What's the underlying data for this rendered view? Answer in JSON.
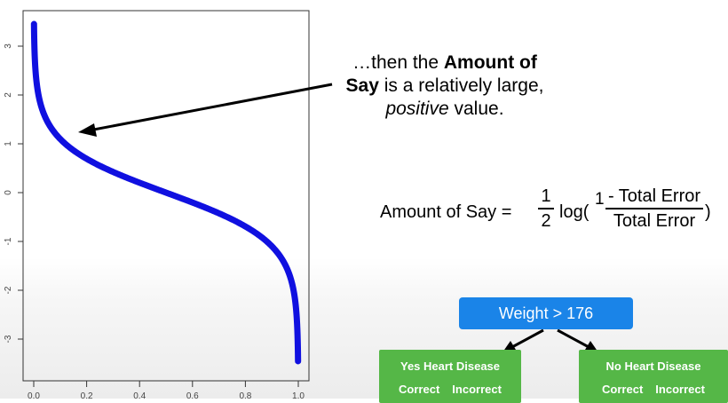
{
  "chart_data": {
    "type": "line",
    "function": "0.5*ln((1-x)/x)",
    "x_ticks": [
      "0.0",
      "0.2",
      "0.4",
      "0.6",
      "0.8",
      "1.0"
    ],
    "y_ticks": [
      "-3",
      "-2",
      "-1",
      "0",
      "1",
      "2",
      "3"
    ],
    "xlim": [
      0.0,
      1.0
    ],
    "ylim": [
      -3.6,
      3.6
    ],
    "x_range": [
      0.001,
      0.999
    ],
    "line_color": "#1010e0",
    "grid": false
  },
  "annotation": {
    "line1_prefix": "…then the ",
    "line1_bold": "Amount of",
    "line2_bold": "Say",
    "line2_rest": " is a relatively large,",
    "line3_italic": "positive",
    "line3_rest": " value."
  },
  "formula": {
    "lhs": "Amount of Say =",
    "half_num": "1",
    "half_den": "2",
    "log": "log(",
    "one": "1",
    "frac_num": "- Total Error",
    "frac_den": "Total Error",
    "rparen": ")"
  },
  "tree": {
    "root": "Weight > 176",
    "left_title": "Yes Heart Disease",
    "right_title": "No Heart Disease",
    "col1": "Correct",
    "col2": "Incorrect",
    "root_color": "#1a84e8",
    "leaf_color": "#55b747"
  }
}
